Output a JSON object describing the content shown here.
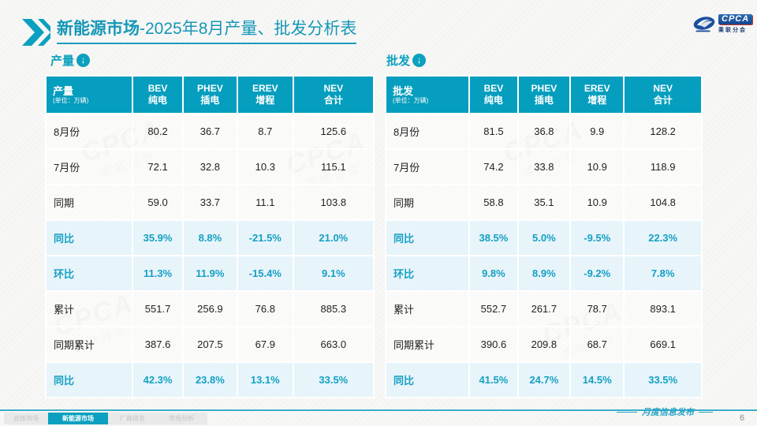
{
  "colors": {
    "accent": "#0ba0bf",
    "header_bg": "#069ebe",
    "highlight_bg": "#e7f4fa",
    "highlight_text": "#14a0c4",
    "title": "#1597b8"
  },
  "header": {
    "title_bold": "新能源市场",
    "title_rest": "-2025年8月产量、批发分析表"
  },
  "logo": {
    "cpca": "CPCA",
    "sub": "乘联分会"
  },
  "watermark": {
    "big": "CPCA",
    "small": "乘联分会"
  },
  "tables": [
    {
      "section_label": "产量",
      "header_label": "产量",
      "unit": "(单位：万辆)",
      "columns": [
        {
          "en": "BEV",
          "cn": "纯电"
        },
        {
          "en": "PHEV",
          "cn": "插电"
        },
        {
          "en": "EREV",
          "cn": "增程"
        },
        {
          "en": "NEV",
          "cn": "合计"
        }
      ],
      "rows": [
        {
          "label": "8月份",
          "values": [
            "80.2",
            "36.7",
            "8.7",
            "125.6"
          ],
          "highlight": false
        },
        {
          "label": "7月份",
          "values": [
            "72.1",
            "32.8",
            "10.3",
            "115.1"
          ],
          "highlight": false
        },
        {
          "label": "同期",
          "values": [
            "59.0",
            "33.7",
            "11.1",
            "103.8"
          ],
          "highlight": false
        },
        {
          "label": "同比",
          "values": [
            "35.9%",
            "8.8%",
            "-21.5%",
            "21.0%"
          ],
          "highlight": true
        },
        {
          "label": "环比",
          "values": [
            "11.3%",
            "11.9%",
            "-15.4%",
            "9.1%"
          ],
          "highlight": true
        },
        {
          "label": "累计",
          "values": [
            "551.7",
            "256.9",
            "76.8",
            "885.3"
          ],
          "highlight": false
        },
        {
          "label": "同期累计",
          "values": [
            "387.6",
            "207.5",
            "67.9",
            "663.0"
          ],
          "highlight": false
        },
        {
          "label": "同比",
          "values": [
            "42.3%",
            "23.8%",
            "13.1%",
            "33.5%"
          ],
          "highlight": true
        }
      ]
    },
    {
      "section_label": "批发",
      "header_label": "批发",
      "unit": "(单位：万辆)",
      "columns": [
        {
          "en": "BEV",
          "cn": "纯电"
        },
        {
          "en": "PHEV",
          "cn": "插电"
        },
        {
          "en": "EREV",
          "cn": "增程"
        },
        {
          "en": "NEV",
          "cn": "合计"
        }
      ],
      "rows": [
        {
          "label": "8月份",
          "values": [
            "81.5",
            "36.8",
            "9.9",
            "128.2"
          ],
          "highlight": false
        },
        {
          "label": "7月份",
          "values": [
            "74.2",
            "33.8",
            "10.9",
            "118.9"
          ],
          "highlight": false
        },
        {
          "label": "同期",
          "values": [
            "58.8",
            "35.1",
            "10.9",
            "104.8"
          ],
          "highlight": false
        },
        {
          "label": "同比",
          "values": [
            "38.5%",
            "5.0%",
            "-9.5%",
            "22.3%"
          ],
          "highlight": true
        },
        {
          "label": "环比",
          "values": [
            "9.8%",
            "8.9%",
            "-9.2%",
            "7.8%"
          ],
          "highlight": true
        },
        {
          "label": "累计",
          "values": [
            "552.7",
            "261.7",
            "78.7",
            "893.1"
          ],
          "highlight": false
        },
        {
          "label": "同期累计",
          "values": [
            "390.6",
            "209.8",
            "68.7",
            "669.1"
          ],
          "highlight": false
        },
        {
          "label": "同比",
          "values": [
            "41.5%",
            "24.7%",
            "14.5%",
            "33.5%"
          ],
          "highlight": true
        }
      ]
    }
  ],
  "footer": {
    "tabs": [
      {
        "label": "总体市场",
        "active": false
      },
      {
        "label": "新能源市场",
        "active": true
      },
      {
        "label": "厂商排名",
        "active": false
      },
      {
        "label": "市场分析",
        "active": false
      }
    ],
    "publish_label": "月度信息发布",
    "page_number": "6"
  }
}
